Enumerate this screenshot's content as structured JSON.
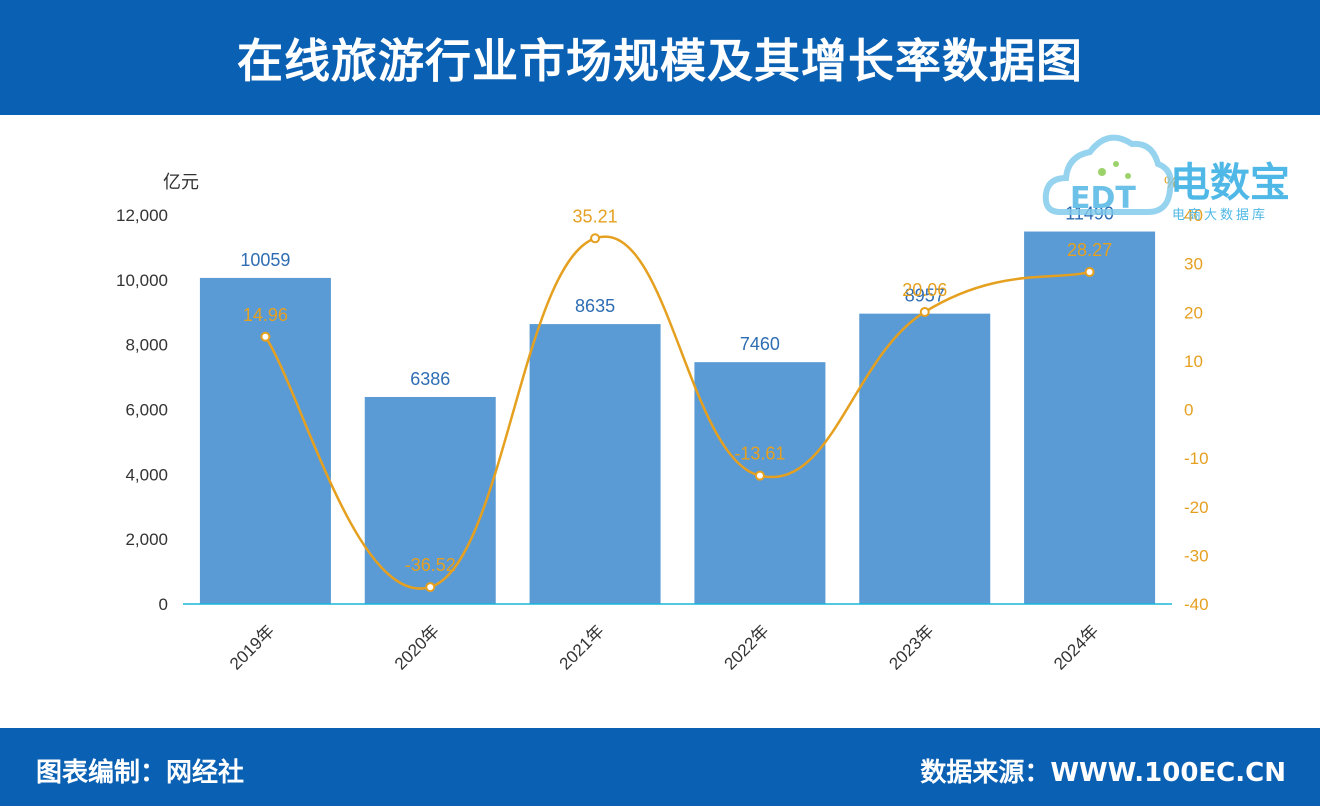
{
  "title": "在线旅游行业市场规模及其增长率数据图",
  "footer": {
    "left": "图表编制：网经社",
    "right": "数据来源：WWW.100EC.CN"
  },
  "logo": {
    "brand": "电数宝",
    "tagline": "电商大数据库",
    "badge": "EDT"
  },
  "colors": {
    "header": "#0a60b3",
    "bar": "#5b9bd5",
    "line": "#e5a020",
    "bar_label": "#2e6db3"
  },
  "chart_data": {
    "type": "bar",
    "categories": [
      "2019年",
      "2020年",
      "2021年",
      "2022年",
      "2023年",
      "2024年"
    ],
    "y_unit": "亿元",
    "y2_unit": "%",
    "ylim": [
      0,
      12000
    ],
    "y_ticks": [
      "0",
      "2,000",
      "4,000",
      "6,000",
      "8,000",
      "10,000",
      "12,000"
    ],
    "y2lim": [
      -40,
      40
    ],
    "y2_ticks": [
      "-40",
      "-30",
      "-20",
      "-10",
      "0",
      "10",
      "20",
      "30",
      "40"
    ],
    "grid": false,
    "series": [
      {
        "type": "bar",
        "values": [
          10059,
          6386,
          8635,
          7460,
          8957,
          11490
        ],
        "labels": [
          "10059",
          "6386",
          "8635",
          "7460",
          "8957",
          "11490"
        ],
        "axis": "left"
      },
      {
        "type": "line",
        "values": [
          14.96,
          -36.52,
          35.21,
          -13.61,
          20.06,
          28.27
        ],
        "labels": [
          "14.96",
          "-36.52",
          "35.21",
          "-13.61",
          "20.06",
          "28.27"
        ],
        "axis": "right",
        "smooth": true
      }
    ]
  }
}
